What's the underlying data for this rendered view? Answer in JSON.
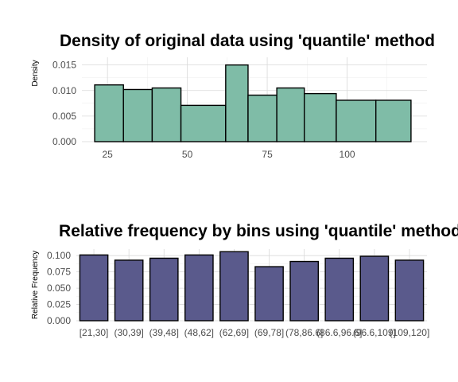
{
  "colors": {
    "hist_fill": "#7fbca7",
    "bar_fill": "#5a5a8c",
    "outline": "#000000"
  },
  "chart_data": [
    {
      "type": "bar",
      "title": "Density of original data using 'quantile' method",
      "xlabel": "",
      "ylabel": "Density",
      "bins": [
        {
          "start": 21,
          "end": 30,
          "density": 0.0111
        },
        {
          "start": 30,
          "end": 39,
          "density": 0.0102
        },
        {
          "start": 39,
          "end": 48,
          "density": 0.0105
        },
        {
          "start": 48,
          "end": 62,
          "density": 0.0071
        },
        {
          "start": 62,
          "end": 69,
          "density": 0.015
        },
        {
          "start": 69,
          "end": 78,
          "density": 0.0091
        },
        {
          "start": 78,
          "end": 86.6,
          "density": 0.0105
        },
        {
          "start": 86.6,
          "end": 96.6,
          "density": 0.0094
        },
        {
          "start": 96.6,
          "end": 109,
          "density": 0.0081
        },
        {
          "start": 109,
          "end": 120,
          "density": 0.0081
        }
      ],
      "xlim": [
        17,
        125
      ],
      "ylim": [
        0,
        0.0165
      ],
      "xticks": [
        25,
        50,
        75,
        100
      ],
      "yticks": [
        0.0,
        0.005,
        0.01,
        0.015
      ],
      "ytick_labels": [
        "0.000",
        "0.005",
        "0.010",
        "0.015"
      ],
      "grid": true
    },
    {
      "type": "bar",
      "title": "Relative frequency by bins using 'quantile' method",
      "xlabel": "",
      "ylabel": "Relative Frequency",
      "categories": [
        "[21,30]",
        "(30,39]",
        "(39,48]",
        "(48,62]",
        "(62,69]",
        "(69,78]",
        "(78,86.6]",
        "(86.6,96.6]",
        "(96.6,109]",
        "(109,120]"
      ],
      "values": [
        0.101,
        0.093,
        0.096,
        0.101,
        0.106,
        0.083,
        0.091,
        0.096,
        0.099,
        0.093
      ],
      "ylim": [
        0,
        0.11
      ],
      "yticks": [
        0,
        0.025,
        0.05,
        0.075,
        0.1
      ],
      "ytick_labels": [
        "0.000",
        "0.025",
        "0.050",
        "0.075",
        "0.100"
      ],
      "grid": true
    }
  ]
}
